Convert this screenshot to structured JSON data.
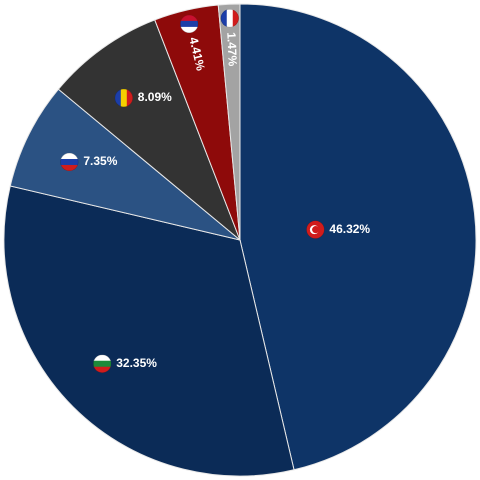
{
  "chart_data": {
    "type": "pie",
    "values": [
      46.32,
      32.35,
      7.35,
      8.09,
      4.41,
      1.47
    ],
    "value_labels": [
      "46.32%",
      "32.35%",
      "7.35%",
      "8.09%",
      "4.41%",
      "1.47%"
    ],
    "colors": [
      "#0e3467",
      "#0b2b57",
      "#2b5283",
      "#333333",
      "#8e0a0a",
      "#a3a3a3"
    ]
  }
}
